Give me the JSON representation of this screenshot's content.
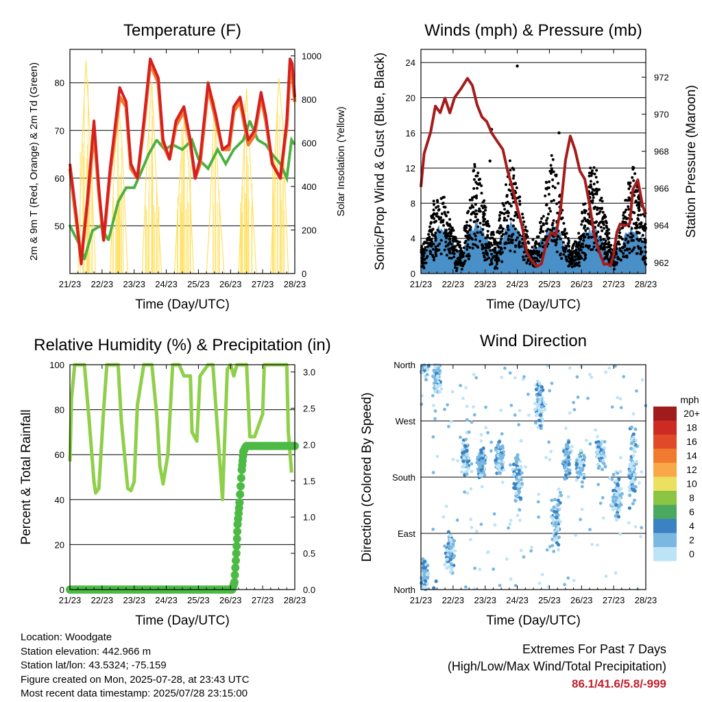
{
  "x_ticks": [
    "21/23",
    "22/23",
    "23/23",
    "24/23",
    "25/23",
    "26/23",
    "27/23",
    "28/23"
  ],
  "x_label": "Time (Day/UTC)",
  "info": {
    "location": "Location: Woodgate",
    "elevation": "Station elevation: 442.966 m",
    "latlon": "Station lat/lon: 43.5324; -75.159",
    "created": "Figure created on Mon, 2025-07-28, at 23:43 UTC",
    "recent": "Most recent data timestamp: 2025/07/28 23:15:00"
  },
  "extremes": {
    "title": "Extremes For Past 7 Days",
    "subtitle": "(High/Low/Max Wind/Total Precipitation)",
    "values": "86.1/41.6/5.8/-999"
  },
  "chart_data": [
    {
      "type": "line",
      "title": "Temperature (F)",
      "xlabel": "Time (Day/UTC)",
      "ylabel": "2m & 9m T (Red, Orange) & 2m Td (Green)",
      "y2label": "Solar Insolation (Yellow)",
      "ylim": [
        40,
        87
      ],
      "y2lim": [
        0,
        1030
      ],
      "yticks": [
        50,
        60,
        70,
        80
      ],
      "y2ticks": [
        0,
        200,
        400,
        600,
        800,
        1000
      ],
      "xlim_days": [
        21.0,
        28.0
      ],
      "series": [
        {
          "color": "#d62020",
          "x": [
            21.0,
            21.2,
            21.35,
            21.55,
            21.75,
            21.9,
            22.05,
            22.25,
            22.55,
            22.75,
            22.9,
            23.1,
            23.3,
            23.5,
            23.75,
            23.9,
            24.1,
            24.3,
            24.55,
            24.75,
            24.9,
            25.05,
            25.3,
            25.55,
            25.75,
            25.95,
            26.1,
            26.3,
            26.55,
            26.75,
            26.95,
            27.1,
            27.3,
            27.55,
            27.75,
            27.85,
            27.92,
            28.0
          ],
          "y": [
            63,
            52,
            42,
            56,
            72,
            58,
            47,
            62,
            79,
            76,
            63,
            60,
            72,
            85,
            81,
            68,
            64,
            72,
            75,
            68,
            60,
            64,
            80,
            73,
            66,
            67,
            75,
            77,
            68,
            70,
            78,
            73,
            63,
            60,
            72,
            85,
            84,
            77
          ]
        },
        {
          "color": "#f07a30",
          "x": [
            21.0,
            21.2,
            21.35,
            21.55,
            21.75,
            21.9,
            22.05,
            22.25,
            22.55,
            22.75,
            22.9,
            23.1,
            23.3,
            23.5,
            23.75,
            23.9,
            24.1,
            24.3,
            24.55,
            24.75,
            24.9,
            25.05,
            25.3,
            25.55,
            25.75,
            25.95,
            26.1,
            26.3,
            26.55,
            26.75,
            26.95,
            27.1,
            27.3,
            27.55,
            27.75,
            27.85,
            27.92,
            28.0
          ],
          "y": [
            62,
            51,
            43,
            55,
            70,
            57,
            47,
            61,
            77,
            75,
            62,
            60,
            71,
            84,
            80,
            67,
            64,
            71,
            74,
            67,
            60,
            63,
            79,
            72,
            66,
            66,
            74,
            76,
            67,
            69,
            77,
            72,
            63,
            60,
            71,
            83,
            82,
            76
          ]
        },
        {
          "color": "#4cb040",
          "x": [
            21.0,
            21.3,
            21.45,
            21.7,
            21.95,
            22.2,
            22.5,
            22.75,
            23.0,
            23.2,
            23.45,
            23.7,
            23.95,
            24.2,
            24.5,
            24.8,
            25.0,
            25.3,
            25.6,
            25.85,
            26.1,
            26.4,
            26.6,
            26.85,
            27.1,
            27.3,
            27.55,
            27.75,
            27.9,
            28.0
          ],
          "y": [
            50,
            46,
            43,
            49,
            50,
            47,
            55,
            58,
            58,
            61,
            65,
            68,
            66,
            67,
            66,
            68,
            64,
            62,
            66,
            63,
            66,
            68,
            72,
            68,
            67,
            65,
            63,
            60,
            68,
            67
          ]
        },
        {
          "color": "#ffe060",
          "axis": "y2",
          "x": [
            21.05,
            21.25,
            21.38,
            21.5,
            21.62,
            21.8,
            22.05,
            22.25,
            22.38,
            22.5,
            22.62,
            22.8,
            23.05,
            23.25,
            23.4,
            23.55,
            23.7,
            23.85,
            24.05,
            24.25,
            24.4,
            24.55,
            24.7,
            24.85,
            25.05,
            25.25,
            25.35,
            25.5,
            25.62,
            25.8,
            26.05,
            26.25,
            26.38,
            26.5,
            26.62,
            26.8,
            27.05,
            27.25,
            27.38,
            27.5,
            27.62,
            27.8
          ],
          "y": [
            0,
            0,
            600,
            980,
            650,
            0,
            0,
            0,
            500,
            780,
            600,
            0,
            0,
            0,
            550,
            880,
            400,
            0,
            0,
            0,
            400,
            700,
            500,
            0,
            0,
            0,
            250,
            800,
            400,
            0,
            0,
            0,
            450,
            850,
            500,
            0,
            0,
            0,
            520,
            900,
            700,
            0
          ]
        }
      ]
    },
    {
      "type": "scatter",
      "title": "Winds (mph) & Pressure (mb)",
      "xlabel": "Time (Day/UTC)",
      "ylabel": "Sonic/Prop Wind & Gust (Blue, Black)",
      "y2label": "Station Pressure (Maroon)",
      "ylim": [
        0,
        25.5
      ],
      "y2lim": [
        961.4,
        973.5
      ],
      "yticks": [
        0,
        4,
        8,
        12,
        16,
        20,
        24
      ],
      "y2ticks": [
        962,
        964,
        966,
        968,
        970,
        972
      ],
      "xlim_days": [
        21.0,
        28.0
      ],
      "series": [
        {
          "name": "Pressure",
          "color": "#a51c1c",
          "x": [
            21.0,
            21.1,
            21.3,
            21.45,
            21.6,
            21.75,
            21.9,
            22.05,
            22.25,
            22.45,
            22.6,
            22.75,
            22.9,
            23.05,
            23.2,
            23.35,
            23.55,
            23.7,
            23.85,
            24.0,
            24.15,
            24.3,
            24.45,
            24.6,
            24.75,
            24.9,
            25.05,
            25.2,
            25.35,
            25.5,
            25.65,
            25.8,
            25.95,
            26.1,
            26.25,
            26.4,
            26.55,
            26.7,
            26.8,
            26.9,
            27.0,
            27.1,
            27.2,
            27.35,
            27.5,
            27.6,
            27.75,
            27.9,
            28.0
          ],
          "y": [
            966,
            968,
            969,
            970.5,
            970.2,
            970.8,
            970,
            971,
            971.5,
            972,
            971.5,
            970.5,
            969.8,
            969.5,
            969,
            968.5,
            968,
            967,
            966,
            965,
            964,
            962.5,
            962,
            961.8,
            962,
            963,
            963.5,
            963.5,
            965,
            967.5,
            968.8,
            968,
            967,
            966.5,
            965,
            963.5,
            962.5,
            962,
            962,
            961.8,
            962.5,
            963.5,
            964,
            964,
            964,
            966,
            966.5,
            965,
            964.5
          ]
        },
        {
          "name": "Gust",
          "color": "#000000",
          "mean": [
            2,
            3,
            6,
            7,
            5,
            3,
            2,
            6,
            10,
            7,
            4,
            3,
            6,
            10,
            8,
            5,
            2,
            3,
            6,
            10,
            8,
            4,
            2,
            3,
            6,
            9,
            8,
            5,
            2,
            3,
            6,
            9,
            7,
            4
          ]
        },
        {
          "name": "Wind",
          "color": "#4a90c8",
          "mean": [
            1,
            1.5,
            3,
            4,
            3,
            1.5,
            1,
            3,
            4.5,
            3.5,
            2,
            1.5,
            3,
            4.5,
            4,
            2.5,
            1,
            1.5,
            3,
            4,
            3.5,
            2,
            1,
            1.5,
            3,
            4,
            3.5,
            2,
            1,
            1.5,
            3,
            4,
            3,
            2
          ]
        }
      ]
    },
    {
      "type": "line",
      "title": "Relative Humidity (%) & Precipitation (in)",
      "xlabel": "Time (Day/UTC)",
      "ylabel": "Percent & Total Rainfall",
      "ylim": [
        0,
        100
      ],
      "y2lim": [
        0,
        3.1
      ],
      "yticks": [
        0,
        20,
        40,
        60,
        80,
        100
      ],
      "y2ticks": [
        "0.0",
        "0.5",
        "1.0",
        "1.5",
        "2.0",
        "2.5",
        "3.0"
      ],
      "xlim_days": [
        21.0,
        28.0
      ],
      "series": [
        {
          "name": "RH",
          "color": "#8fcf4a",
          "x": [
            21.0,
            21.05,
            21.15,
            21.3,
            21.45,
            21.6,
            21.75,
            21.8,
            21.9,
            22.05,
            22.15,
            22.3,
            22.5,
            22.6,
            22.8,
            22.9,
            23.0,
            23.1,
            23.3,
            23.55,
            23.7,
            23.8,
            23.9,
            24.05,
            24.2,
            24.4,
            24.55,
            24.75,
            24.8,
            24.95,
            25.05,
            25.3,
            25.45,
            25.6,
            25.75,
            25.8,
            25.9,
            26.0,
            26.1,
            26.2,
            26.5,
            26.6,
            26.75,
            27.0,
            27.05,
            27.1,
            27.35,
            27.5,
            27.6,
            27.75,
            27.8,
            27.9
          ],
          "y": [
            57,
            85,
            100,
            100,
            100,
            75,
            48,
            43,
            45,
            80,
            100,
            100,
            100,
            75,
            45,
            44,
            48,
            82,
            100,
            100,
            78,
            55,
            47,
            60,
            100,
            100,
            95,
            95,
            70,
            66,
            95,
            100,
            100,
            70,
            40,
            60,
            98,
            100,
            95,
            100,
            100,
            68,
            68,
            78,
            100,
            100,
            100,
            100,
            100,
            100,
            70,
            52
          ]
        },
        {
          "name": "Precip",
          "color": "#4cba44",
          "axis": "y2",
          "x": [
            21.0,
            26.05,
            26.12,
            26.18,
            26.22,
            26.28,
            26.35,
            26.4,
            26.45,
            26.5,
            28.0
          ],
          "y": [
            0,
            0,
            0.1,
            0.5,
            0.9,
            1.2,
            1.65,
            1.9,
            1.95,
            1.98,
            1.98
          ]
        }
      ]
    },
    {
      "type": "scatter",
      "title": "Wind Direction",
      "xlabel": "Time (Day/UTC)",
      "ylabel": "Direction (Colored By Speed)",
      "yticks": [
        "North",
        "East",
        "South",
        "West",
        "North"
      ],
      "legend_title": "mph",
      "legend_levels": [
        "20+",
        "18",
        "16",
        "14",
        "12",
        "10",
        "8",
        "6",
        "4",
        "2",
        "0"
      ],
      "legend_colors": [
        "#a01c1c",
        "#cc2a22",
        "#e04a28",
        "#f07b30",
        "#f8a848",
        "#ece060",
        "#8cc444",
        "#4aa860",
        "#3a82c4",
        "#7ab8e2",
        "#bde4f6"
      ],
      "xlim_days": [
        21.0,
        28.0
      ],
      "clusters": [
        {
          "day": 21.1,
          "dir": 20,
          "spread": 60
        },
        {
          "day": 21.5,
          "dir": 340,
          "spread": 50
        },
        {
          "day": 21.9,
          "dir": 60,
          "spread": 50
        },
        {
          "day": 22.4,
          "dir": 210,
          "spread": 50
        },
        {
          "day": 22.9,
          "dir": 200,
          "spread": 40
        },
        {
          "day": 23.45,
          "dir": 210,
          "spread": 40
        },
        {
          "day": 24.0,
          "dir": 180,
          "spread": 70
        },
        {
          "day": 24.7,
          "dir": 300,
          "spread": 60
        },
        {
          "day": 25.2,
          "dir": 110,
          "spread": 60
        },
        {
          "day": 25.55,
          "dir": 210,
          "spread": 50
        },
        {
          "day": 25.95,
          "dir": 200,
          "spread": 40
        },
        {
          "day": 26.6,
          "dir": 220,
          "spread": 40
        },
        {
          "day": 27.1,
          "dir": 150,
          "spread": 60
        },
        {
          "day": 27.6,
          "dir": 200,
          "spread": 100
        }
      ]
    }
  ]
}
